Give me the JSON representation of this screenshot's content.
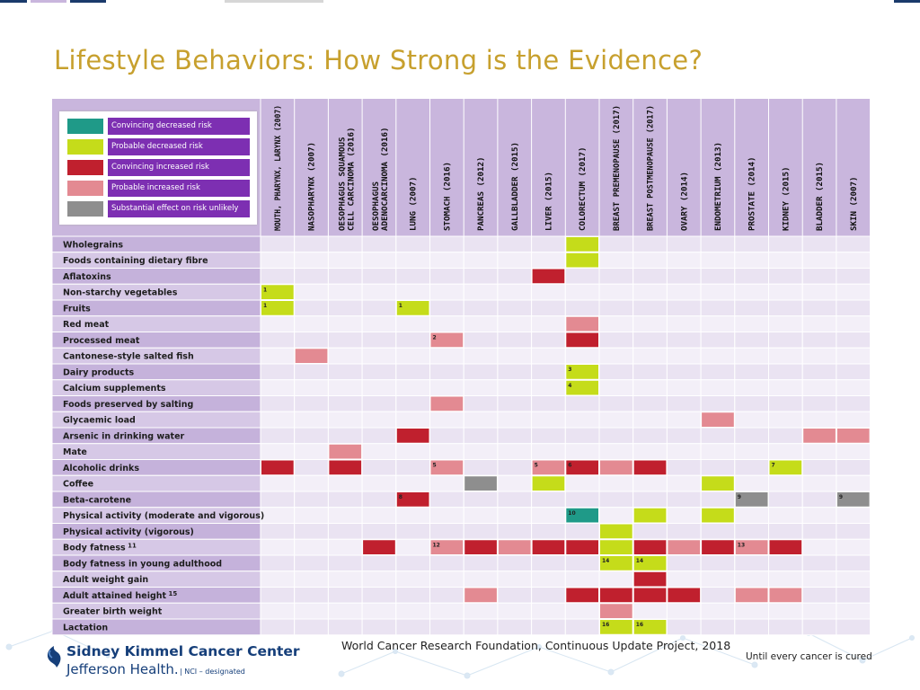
{
  "slide": {
    "title": "Lifestyle Behaviors: How Strong is the Evidence?",
    "source": "World Cancer Research Foundation, Continuous Update Project, 2018",
    "tagline": "Until every cancer is cured",
    "logo_line1": "Sidney Kimmel Cancer Center",
    "logo_line2": "Jefferson Health.",
    "logo_nci": "| NCI – designated"
  },
  "colors": {
    "title": "#c7a02e",
    "header_bg": "#c9b6dd",
    "row_label_bg": "#c5b2db",
    "row_label_bg_alt": "#d6c8e6",
    "cell_bg": "#eae3f2",
    "cell_bg_alt": "#f3eff8",
    "legend_label_bg": "#7d2fb2",
    "brand": "#163f7a"
  },
  "chart_data": {
    "type": "table",
    "legend": [
      {
        "code": "CD",
        "label": "Convincing decreased risk",
        "color": "#1f9a88"
      },
      {
        "code": "PD",
        "label": "Probable decreased risk",
        "color": "#c5dc1a"
      },
      {
        "code": "CI",
        "label": "Convincing increased risk",
        "color": "#c0202e"
      },
      {
        "code": "PI",
        "label": "Probable increased risk",
        "color": "#e38a92"
      },
      {
        "code": "SU",
        "label": "Substantial effect on risk unlikely",
        "color": "#8e8e8e"
      }
    ],
    "columns": [
      [
        "MOUTH, PHARYNX, LARYNX (2007)"
      ],
      [
        "NASOPHARYNX (2007)"
      ],
      [
        "OESOPHAGUS SQUAMOUS",
        "CELL CARCINOMA (2016)"
      ],
      [
        "OESOPHAGUS",
        "ADENOCARCINOMA (2016)"
      ],
      [
        "LUNG (2007)"
      ],
      [
        "STOMACH (2016)"
      ],
      [
        "PANCREAS (2012)"
      ],
      [
        "GALLBLADDER (2015)"
      ],
      [
        "LIVER (2015)"
      ],
      [
        "COLORECTUM (2017)"
      ],
      [
        "BREAST PREMENOPAUSE (2017)"
      ],
      [
        "BREAST POSTMENOPAUSE (2017)"
      ],
      [
        "OVARY (2014)"
      ],
      [
        "ENDOMETRIUM (2013)"
      ],
      [
        "PROSTATE (2014)"
      ],
      [
        "KIDNEY (2015)"
      ],
      [
        "BLADDER (2015)"
      ],
      [
        "SKIN (2007)"
      ]
    ],
    "rows": [
      "Wholegrains",
      "Foods containing dietary fibre",
      "Aflatoxins",
      "Non-starchy vegetables",
      "Fruits",
      "Red meat",
      "Processed meat",
      "Cantonese-style salted fish",
      "Dairy products",
      "Calcium supplements",
      "Foods preserved by salting",
      "Glycaemic load",
      "Arsenic in drinking water",
      "Mate",
      "Alcoholic drinks",
      "Coffee",
      "Beta-carotene",
      "Physical activity (moderate and vigorous)",
      "Physical activity (vigorous)",
      "Body fatness",
      "Body fatness in young adulthood",
      "Adult weight gain",
      "Adult attained height",
      "Greater birth weight",
      "Lactation"
    ],
    "row_sup": {
      "19": "11",
      "22": "15"
    },
    "cells": [
      {
        "r": 0,
        "c": 9,
        "v": "PD"
      },
      {
        "r": 1,
        "c": 9,
        "v": "PD"
      },
      {
        "r": 2,
        "c": 8,
        "v": "CI"
      },
      {
        "r": 3,
        "c": 0,
        "v": "PD",
        "note": "1"
      },
      {
        "r": 4,
        "c": 0,
        "v": "PD",
        "note": "1"
      },
      {
        "r": 4,
        "c": 4,
        "v": "PD",
        "note": "1"
      },
      {
        "r": 5,
        "c": 9,
        "v": "PI"
      },
      {
        "r": 6,
        "c": 5,
        "v": "PI",
        "note": "2"
      },
      {
        "r": 6,
        "c": 9,
        "v": "CI"
      },
      {
        "r": 7,
        "c": 1,
        "v": "PI"
      },
      {
        "r": 8,
        "c": 9,
        "v": "PD",
        "note": "3"
      },
      {
        "r": 9,
        "c": 9,
        "v": "PD",
        "note": "4"
      },
      {
        "r": 10,
        "c": 5,
        "v": "PI"
      },
      {
        "r": 11,
        "c": 13,
        "v": "PI"
      },
      {
        "r": 12,
        "c": 4,
        "v": "CI"
      },
      {
        "r": 12,
        "c": 16,
        "v": "PI"
      },
      {
        "r": 12,
        "c": 17,
        "v": "PI"
      },
      {
        "r": 13,
        "c": 2,
        "v": "PI"
      },
      {
        "r": 14,
        "c": 0,
        "v": "CI"
      },
      {
        "r": 14,
        "c": 2,
        "v": "CI"
      },
      {
        "r": 14,
        "c": 5,
        "v": "PI",
        "note": "5"
      },
      {
        "r": 14,
        "c": 8,
        "v": "PI",
        "note": "5"
      },
      {
        "r": 14,
        "c": 9,
        "v": "CI",
        "note": "6"
      },
      {
        "r": 14,
        "c": 10,
        "v": "PI"
      },
      {
        "r": 14,
        "c": 11,
        "v": "CI"
      },
      {
        "r": 14,
        "c": 15,
        "v": "PD",
        "note": "7"
      },
      {
        "r": 15,
        "c": 6,
        "v": "SU"
      },
      {
        "r": 15,
        "c": 8,
        "v": "PD"
      },
      {
        "r": 15,
        "c": 13,
        "v": "PD"
      },
      {
        "r": 16,
        "c": 4,
        "v": "CI",
        "note": "8"
      },
      {
        "r": 16,
        "c": 14,
        "v": "SU",
        "note": "9"
      },
      {
        "r": 16,
        "c": 17,
        "v": "SU",
        "note": "9"
      },
      {
        "r": 17,
        "c": 9,
        "v": "CD",
        "note": "10"
      },
      {
        "r": 17,
        "c": 11,
        "v": "PD"
      },
      {
        "r": 17,
        "c": 13,
        "v": "PD"
      },
      {
        "r": 18,
        "c": 10,
        "v": "PD"
      },
      {
        "r": 19,
        "c": 3,
        "v": "CI"
      },
      {
        "r": 19,
        "c": 5,
        "v": "PI",
        "note": "12"
      },
      {
        "r": 19,
        "c": 6,
        "v": "CI"
      },
      {
        "r": 19,
        "c": 7,
        "v": "PI"
      },
      {
        "r": 19,
        "c": 8,
        "v": "CI"
      },
      {
        "r": 19,
        "c": 9,
        "v": "CI"
      },
      {
        "r": 19,
        "c": 10,
        "v": "PD"
      },
      {
        "r": 19,
        "c": 11,
        "v": "CI"
      },
      {
        "r": 19,
        "c": 12,
        "v": "PI"
      },
      {
        "r": 19,
        "c": 13,
        "v": "CI"
      },
      {
        "r": 19,
        "c": 14,
        "v": "PI",
        "note": "13"
      },
      {
        "r": 19,
        "c": 15,
        "v": "CI"
      },
      {
        "r": 20,
        "c": 10,
        "v": "PD",
        "note": "14"
      },
      {
        "r": 20,
        "c": 11,
        "v": "PD",
        "note": "14"
      },
      {
        "r": 21,
        "c": 11,
        "v": "CI"
      },
      {
        "r": 22,
        "c": 6,
        "v": "PI"
      },
      {
        "r": 22,
        "c": 9,
        "v": "CI"
      },
      {
        "r": 22,
        "c": 10,
        "v": "CI"
      },
      {
        "r": 22,
        "c": 11,
        "v": "CI"
      },
      {
        "r": 22,
        "c": 12,
        "v": "CI"
      },
      {
        "r": 22,
        "c": 14,
        "v": "PI"
      },
      {
        "r": 22,
        "c": 15,
        "v": "PI"
      },
      {
        "r": 23,
        "c": 10,
        "v": "PI"
      },
      {
        "r": 24,
        "c": 10,
        "v": "PD",
        "note": "16"
      },
      {
        "r": 24,
        "c": 11,
        "v": "PD",
        "note": "16"
      }
    ]
  }
}
